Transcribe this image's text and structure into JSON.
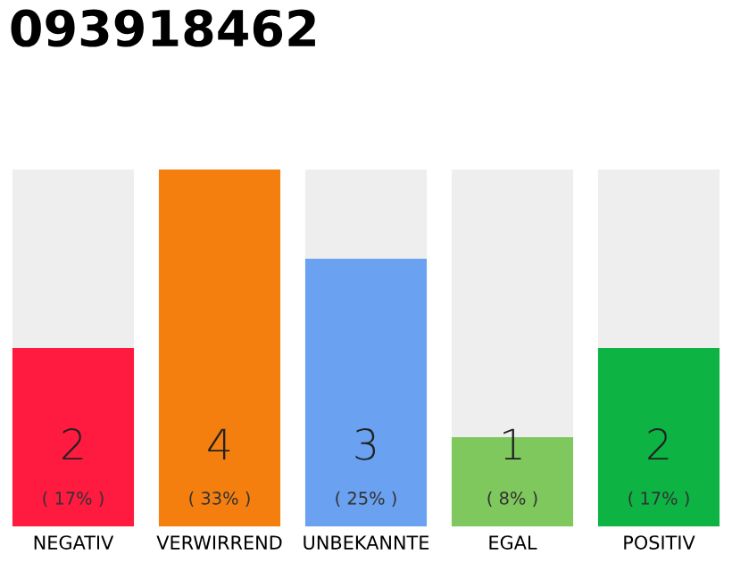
{
  "chart_data": {
    "type": "bar",
    "title": "093918462",
    "categories": [
      "NEGATIV",
      "VERWIRREND",
      "UNBEKANNTE",
      "EGAL",
      "POSITIV"
    ],
    "stacked": true,
    "ylim": [
      0,
      4
    ],
    "tick_labels": "x",
    "grid": false,
    "legend": false,
    "series": [
      {
        "colors": [
          "#ff1a40",
          "#f57f0e",
          "#6aa1f0",
          "#7ec85e",
          "#0db343"
        ],
        "values": [
          2,
          4,
          3,
          1,
          2
        ],
        "value_labels": [
          "2",
          "4",
          "3",
          "1",
          "2"
        ]
      },
      {
        "color": "#eeeeee",
        "values": [
          2,
          0,
          1,
          3,
          2
        ]
      }
    ],
    "annotations": [
      "( 17% )",
      "( 33% )",
      "( 25% )",
      "( 8% )",
      "( 17% )"
    ]
  }
}
